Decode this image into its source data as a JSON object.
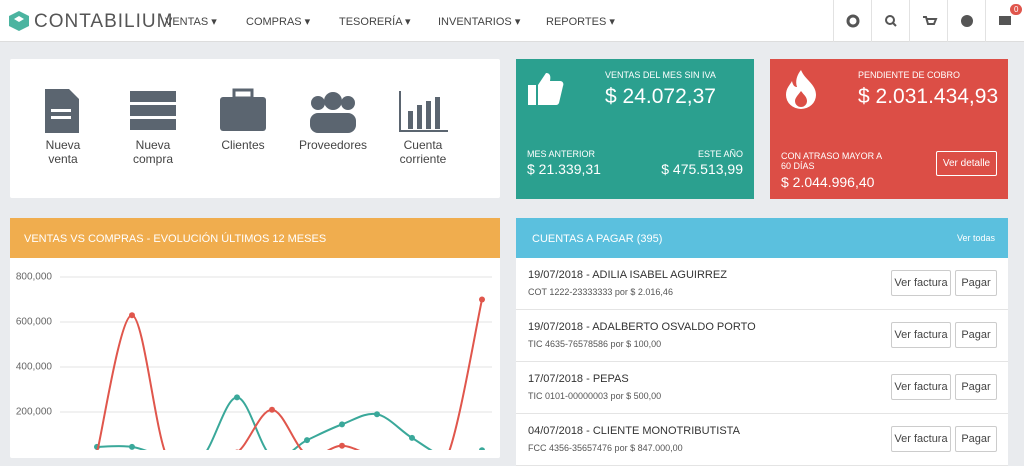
{
  "navbar": {
    "brand": "CONTABILIUM",
    "menu": [
      "VENTAS",
      "COMPRAS",
      "TESORERÍA",
      "INVENTARIOS",
      "REPORTES"
    ],
    "badge": "0"
  },
  "shortcuts": [
    "Nueva venta",
    "Nueva compra",
    "Clientes",
    "Proveedores",
    "Cuenta corriente"
  ],
  "sales_tile": {
    "label": "VENTAS DEL MES SIN IVA",
    "value": "$ 24.072,37",
    "prev_label": "MES ANTERIOR",
    "prev_value": "$ 21.339,31",
    "year_label": "ESTE AÑO",
    "year_value": "$ 475.513,99"
  },
  "receivables_tile": {
    "label": "PENDIENTE DE COBRO",
    "value": "$ 2.031.434,93",
    "overdue_label": "CON ATRASO MAYOR A 60 DÍAS",
    "overdue_value": "$ 2.044.996,40",
    "button": "Ver detalle"
  },
  "chart_data": {
    "type": "line",
    "title": "VENTAS VS COMPRAS - EVOLUCIÓN ÚLTIMOS 12 MESES",
    "categories": [
      null,
      null,
      null,
      null,
      null,
      null,
      null,
      null,
      null,
      null,
      null,
      null
    ],
    "series": [
      {
        "color": "#3aa89a",
        "values": [
          45000,
          45000,
          0,
          0,
          265000,
          0,
          75000,
          145000,
          190000,
          85000,
          0,
          30000
        ]
      },
      {
        "color": "#e0564c",
        "values": [
          20000,
          630000,
          0,
          0,
          20000,
          210000,
          10000,
          50000,
          0,
          0,
          0,
          700000
        ]
      }
    ],
    "ylim": [
      0,
      800000
    ],
    "yticks": [
      {
        "value": 200000,
        "label": "200,000"
      },
      {
        "value": 400000,
        "label": "400,000"
      },
      {
        "value": 600000,
        "label": "600,000"
      },
      {
        "value": 800000,
        "label": "800,000"
      }
    ],
    "grid": true
  },
  "payables": {
    "title": "CUENTAS A PAGAR (395)",
    "link": "Ver todas",
    "view_button": "Ver factura",
    "pay_button": "Pagar",
    "items": [
      {
        "title": "19/07/2018 - ADILIA ISABEL AGUIRREZ",
        "detail": "COT 1222-23333333 por $ 2.016,46"
      },
      {
        "title": "19/07/2018 - ADALBERTO OSVALDO PORTO",
        "detail": "TIC 4635-76578586 por $ 100,00"
      },
      {
        "title": "17/07/2018 - PEPAS",
        "detail": "TIC 0101-00000003 por $ 500,00"
      },
      {
        "title": "04/07/2018 - CLIENTE MONOTRIBUTISTA",
        "detail": "FCC 4356-35657476 por $ 847.000,00"
      }
    ]
  }
}
